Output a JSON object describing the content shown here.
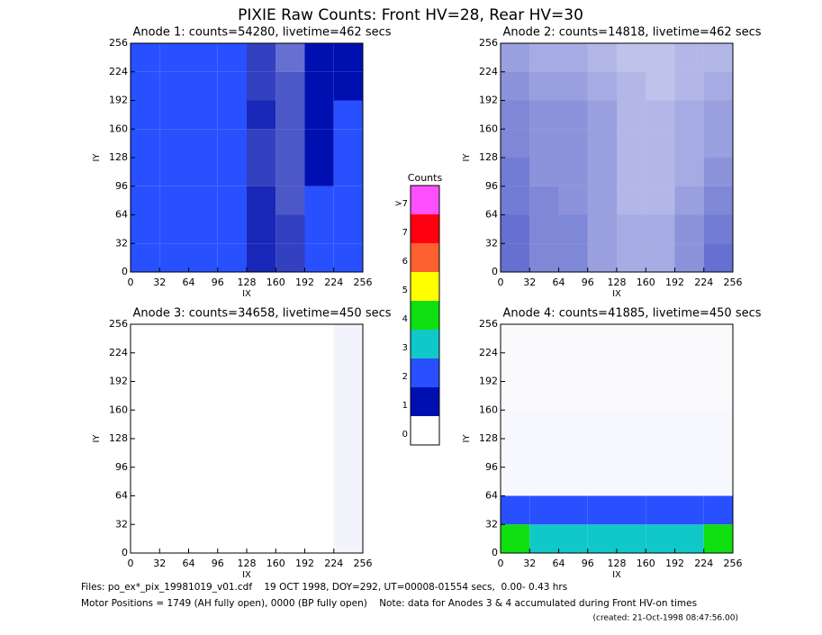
{
  "title": "PIXIE Raw Counts:  Front HV=28, Rear HV=30",
  "colorbar": {
    "title": "Counts",
    "labels": [
      "0",
      "1",
      "2",
      "3",
      "4",
      "5",
      "6",
      "7",
      ">7"
    ],
    "colors": [
      "#ffffff",
      "#0010b0",
      "#2850ff",
      "#10c8c8",
      "#10e010",
      "#ffff00",
      "#ff6030",
      "#ff0010",
      "#ff50ff"
    ]
  },
  "footer": [
    "Files: po_ex*_pix_19981019_v01.cdf    19 OCT 1998, DOY=292, UT=00008-01554 secs,  0.00- 0.43 hrs",
    "Motor Positions = 1749 (AH fully open), 0000 (BP fully open)    Note: data for Anodes 3 & 4 accumulated during Front HV-on times",
    "(created: 21-Oct-1998 08:47:56.00)"
  ],
  "chart_data": [
    {
      "type": "heatmap",
      "title": "Anode 1: counts=54280, livetime=462 secs",
      "xlabel": "IX",
      "ylabel": "IY",
      "xlim": [
        0,
        256
      ],
      "ylim": [
        0,
        256
      ],
      "xticks": [
        0,
        32,
        64,
        96,
        128,
        160,
        192,
        224,
        256
      ],
      "yticks": [
        0,
        32,
        64,
        96,
        128,
        160,
        192,
        224,
        256
      ],
      "values": [
        [
          2.2,
          1.8,
          1.8,
          1.6,
          0.9,
          0.8,
          1.6,
          1.6
        ],
        [
          2.2,
          1.8,
          1.7,
          1.6,
          0.9,
          0.8,
          1.8,
          1.8
        ],
        [
          2.3,
          1.9,
          1.8,
          1.6,
          0.9,
          0.7,
          1.8,
          1.9
        ],
        [
          2.2,
          1.8,
          1.7,
          1.5,
          0.8,
          0.7,
          1.4,
          1.7
        ],
        [
          2.1,
          1.8,
          1.7,
          1.5,
          0.8,
          0.7,
          1.3,
          1.5
        ],
        [
          2.2,
          1.9,
          1.8,
          1.6,
          0.9,
          0.7,
          1.3,
          1.5
        ],
        [
          2.0,
          1.8,
          1.7,
          1.5,
          0.8,
          0.7,
          1.2,
          1.4
        ],
        [
          1.9,
          1.7,
          1.6,
          1.5,
          0.8,
          0.6,
          1.1,
          1.3
        ]
      ]
    },
    {
      "type": "heatmap",
      "title": "Anode 2: counts=14818, livetime=462 secs",
      "xlabel": "IX",
      "ylabel": "IY",
      "xlim": [
        0,
        256
      ],
      "ylim": [
        0,
        256
      ],
      "xticks": [
        0,
        32,
        64,
        96,
        128,
        160,
        192,
        224,
        256
      ],
      "yticks": [
        0,
        32,
        64,
        96,
        128,
        160,
        192,
        224,
        256
      ],
      "values": [
        [
          0.6,
          0.5,
          0.5,
          0.4,
          0.35,
          0.35,
          0.45,
          0.6
        ],
        [
          0.6,
          0.5,
          0.5,
          0.4,
          0.35,
          0.35,
          0.45,
          0.55
        ],
        [
          0.55,
          0.5,
          0.45,
          0.4,
          0.3,
          0.3,
          0.4,
          0.5
        ],
        [
          0.55,
          0.45,
          0.45,
          0.4,
          0.3,
          0.3,
          0.35,
          0.45
        ],
        [
          0.5,
          0.45,
          0.45,
          0.4,
          0.3,
          0.3,
          0.35,
          0.4
        ],
        [
          0.5,
          0.45,
          0.45,
          0.4,
          0.3,
          0.3,
          0.35,
          0.4
        ],
        [
          0.45,
          0.4,
          0.4,
          0.35,
          0.3,
          0.25,
          0.3,
          0.35
        ],
        [
          0.4,
          0.35,
          0.35,
          0.3,
          0.25,
          0.25,
          0.3,
          0.3
        ]
      ]
    },
    {
      "type": "heatmap",
      "title": "Anode 3: counts=34658, livetime=450 secs",
      "xlabel": "IX",
      "ylabel": "IY",
      "xlim": [
        0,
        256
      ],
      "ylim": [
        0,
        256
      ],
      "xticks": [
        0,
        32,
        64,
        96,
        128,
        160,
        192,
        224,
        256
      ],
      "yticks": [
        0,
        32,
        64,
        96,
        128,
        160,
        192,
        224,
        256
      ],
      "values": [
        [
          0,
          0,
          0,
          0,
          0,
          0,
          0,
          0.05
        ],
        [
          0,
          0,
          0,
          0,
          0,
          0,
          0,
          0.05
        ],
        [
          0,
          0,
          0,
          0,
          0,
          0,
          0,
          0.05
        ],
        [
          0,
          0,
          0,
          0,
          0,
          0,
          0,
          0.05
        ],
        [
          0,
          0,
          0,
          0,
          0,
          0,
          0,
          0.05
        ],
        [
          0,
          0,
          0,
          0,
          0,
          0,
          0,
          0.05
        ],
        [
          0,
          0,
          0,
          0,
          0,
          0,
          0,
          0.05
        ],
        [
          0,
          0,
          0,
          0,
          0,
          0,
          0,
          0.05
        ]
      ]
    },
    {
      "type": "heatmap",
      "title": "Anode 4: counts=41885, livetime=450 secs",
      "xlabel": "IX",
      "ylabel": "IY",
      "xlim": [
        0,
        256
      ],
      "ylim": [
        0,
        256
      ],
      "xticks": [
        0,
        32,
        64,
        96,
        128,
        160,
        192,
        224,
        256
      ],
      "yticks": [
        0,
        32,
        64,
        96,
        128,
        160,
        192,
        224,
        256
      ],
      "values": [
        [
          3.5,
          3.0,
          2.6,
          2.5,
          2.5,
          2.6,
          2.8,
          3.5
        ],
        [
          1.6,
          1.5,
          1.5,
          1.5,
          1.5,
          1.5,
          1.5,
          1.8
        ],
        [
          0.03,
          0.03,
          0.03,
          0.03,
          0.03,
          0.03,
          0.03,
          0.03
        ],
        [
          0.03,
          0.03,
          0.03,
          0.03,
          0.03,
          0.03,
          0.03,
          0.03
        ],
        [
          0.03,
          0.03,
          0.03,
          0.03,
          0.03,
          0.03,
          0.03,
          0.03
        ],
        [
          0.02,
          0.02,
          0.02,
          0.02,
          0.02,
          0.02,
          0.02,
          0.02
        ],
        [
          0.02,
          0.02,
          0.02,
          0.02,
          0.02,
          0.02,
          0.02,
          0.02
        ],
        [
          0.02,
          0.02,
          0.02,
          0.02,
          0.02,
          0.02,
          0.02,
          0.02
        ]
      ]
    }
  ]
}
